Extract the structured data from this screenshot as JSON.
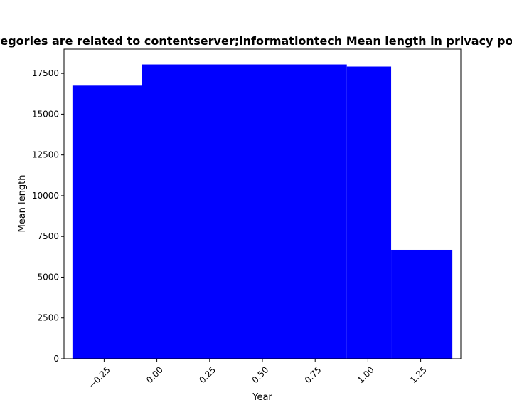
{
  "chart_data": {
    "type": "bar",
    "title": "Categories are related to contentserver;informationtech Mean length in privacy policies",
    "xlabel": "Year",
    "ylabel": "Mean length",
    "color": "#0000ff",
    "xlim": [
      -0.44,
      1.44
    ],
    "ylim": [
      0,
      18990
    ],
    "bars": [
      {
        "x_start": -0.4,
        "x_end": -0.07,
        "value": 16750
      },
      {
        "x_start": -0.07,
        "x_end": 0.9,
        "value": 18050
      },
      {
        "x_start": 0.9,
        "x_end": 1.11,
        "value": 17920
      },
      {
        "x_start": 1.11,
        "x_end": 1.4,
        "value": 6680
      }
    ],
    "x_ticks": [
      {
        "value": -0.25,
        "label": "−0.25"
      },
      {
        "value": 0.0,
        "label": "0.00"
      },
      {
        "value": 0.25,
        "label": "0.25"
      },
      {
        "value": 0.5,
        "label": "0.50"
      },
      {
        "value": 0.75,
        "label": "0.75"
      },
      {
        "value": 1.0,
        "label": "1.00"
      },
      {
        "value": 1.25,
        "label": "1.25"
      }
    ],
    "y_ticks": [
      {
        "value": 0,
        "label": "0"
      },
      {
        "value": 2500,
        "label": "2500"
      },
      {
        "value": 5000,
        "label": "5000"
      },
      {
        "value": 7500,
        "label": "7500"
      },
      {
        "value": 10000,
        "label": "10000"
      },
      {
        "value": 12500,
        "label": "12500"
      },
      {
        "value": 15000,
        "label": "15000"
      },
      {
        "value": 17500,
        "label": "17500"
      }
    ],
    "grid": false,
    "legend": "none"
  }
}
